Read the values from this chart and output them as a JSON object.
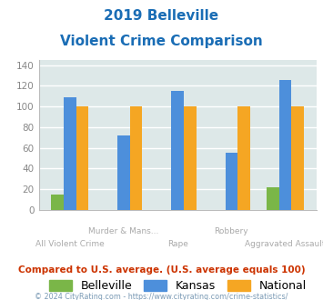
{
  "title_line1": "2019 Belleville",
  "title_line2": "Violent Crime Comparison",
  "categories": [
    "All Violent Crime",
    "Murder & Mans...",
    "Rape",
    "Robbery",
    "Aggravated Assault"
  ],
  "cat_labels_top": [
    "",
    "Murder & Mans...",
    "",
    "Robbery",
    ""
  ],
  "cat_labels_bot": [
    "All Violent Crime",
    "",
    "Rape",
    "",
    "Aggravated Assault"
  ],
  "belleville": [
    15,
    0,
    0,
    0,
    22
  ],
  "kansas": [
    109,
    72,
    115,
    55,
    126
  ],
  "national": [
    100,
    100,
    100,
    100,
    100
  ],
  "belleville_color": "#7ab648",
  "kansas_color": "#4d8fdb",
  "national_color": "#f5a623",
  "ylim": [
    0,
    145
  ],
  "yticks": [
    0,
    20,
    40,
    60,
    80,
    100,
    120,
    140
  ],
  "bg_color": "#dde8e8",
  "grid_color": "#ffffff",
  "title_color": "#1a6db5",
  "xlabel_color": "#aaaaaa",
  "footer_text": "Compared to U.S. average. (U.S. average equals 100)",
  "copyright_text": "© 2024 CityRating.com - https://www.cityrating.com/crime-statistics/",
  "footer_color": "#cc3300",
  "copyright_color": "#7a9ab5",
  "legend_labels": [
    "Belleville",
    "Kansas",
    "National"
  ]
}
